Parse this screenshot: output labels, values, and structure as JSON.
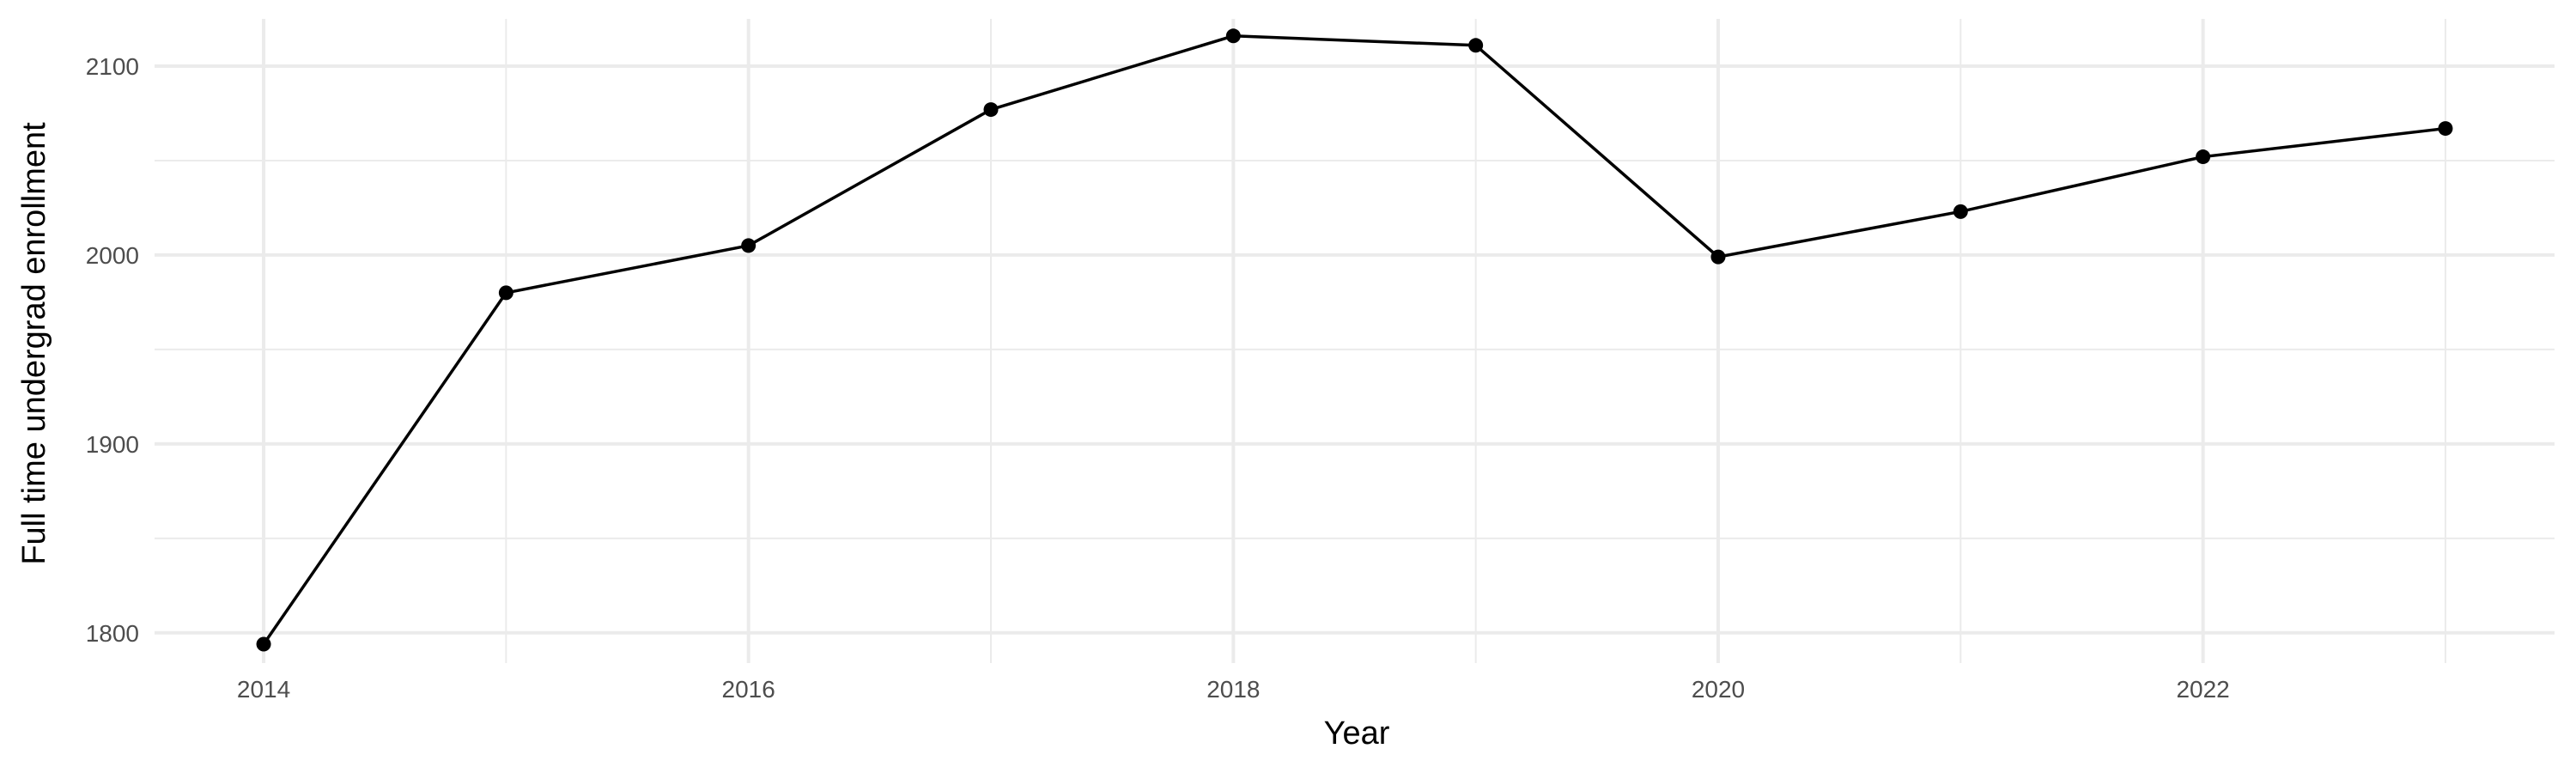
{
  "chart_data": {
    "type": "line",
    "title": "",
    "xlabel": "Year",
    "ylabel": "Full time undergrad enrollment",
    "x": [
      2014,
      2015,
      2016,
      2017,
      2018,
      2019,
      2020,
      2021,
      2022,
      2023
    ],
    "series": [
      {
        "values": [
          1794,
          1980,
          2005,
          2077,
          2116,
          2111,
          1999,
          2023,
          2052,
          2067
        ]
      }
    ],
    "xlim": [
      2013.55,
      2023.45
    ],
    "ylim": [
      1784,
      2125
    ],
    "x_ticks": [
      "2014",
      "2016",
      "2018",
      "2020",
      "2022"
    ],
    "y_ticks": [
      "1800",
      "1900",
      "2000",
      "2100"
    ],
    "grid": true,
    "markers": true,
    "line_color": "#000000",
    "grid_color": "#ebebeb"
  }
}
